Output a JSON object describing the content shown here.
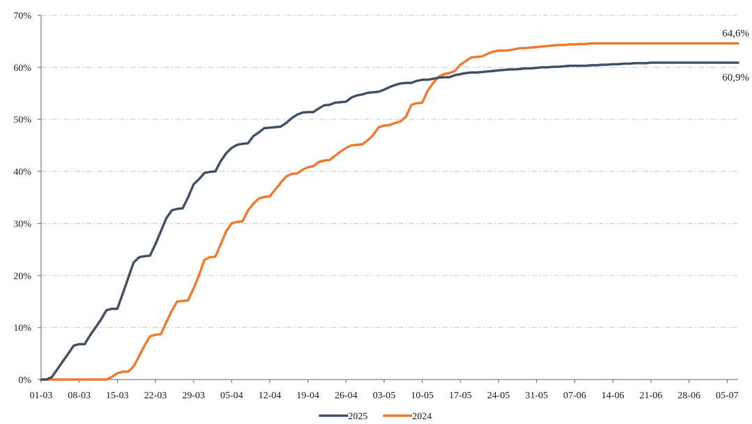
{
  "chart_data": {
    "type": "line",
    "title": "",
    "xlabel": "",
    "ylabel": "",
    "x_tick_labels": [
      "01-03",
      "08-03",
      "15-03",
      "22-03",
      "29-03",
      "05-04",
      "12-04",
      "19-04",
      "26-04",
      "03-05",
      "10-05",
      "17-05",
      "24-05",
      "31-05",
      "07-06",
      "14-06",
      "21-06",
      "28-06",
      "05-07"
    ],
    "y_tick_labels": [
      "0%",
      "10%",
      "20%",
      "30%",
      "40%",
      "50%",
      "60%",
      "70%"
    ],
    "ylim": [
      0,
      70
    ],
    "x_range_days": [
      0,
      128
    ],
    "grid": "horizontal dash-dot",
    "legend_position": "bottom-center",
    "series": [
      {
        "name": "2025",
        "color": "#44546a",
        "end_label": "60,9%",
        "x": [
          0,
          1,
          2,
          3,
          4,
          5,
          6,
          7,
          8,
          9,
          10,
          11,
          12,
          13,
          14,
          15,
          16,
          17,
          18,
          19,
          20,
          21,
          22,
          23,
          24,
          25,
          26,
          27,
          28,
          29,
          30,
          31,
          32,
          33,
          34,
          35,
          36,
          37,
          38,
          39,
          40,
          41,
          42,
          43,
          44,
          45,
          46,
          47,
          48,
          49,
          50,
          51,
          52,
          53,
          54,
          55,
          56,
          57,
          58,
          59,
          60,
          61,
          62,
          63,
          64,
          65,
          66,
          67,
          68,
          69,
          70,
          71,
          72,
          73,
          74,
          75,
          76,
          77,
          78,
          79,
          80,
          81,
          82,
          83,
          84,
          85,
          86,
          87,
          88,
          89,
          90,
          91,
          92,
          93,
          94,
          95,
          96,
          97,
          98,
          99,
          100,
          101,
          102,
          103,
          104,
          105,
          106,
          107,
          108,
          109,
          110,
          111,
          112,
          113,
          114,
          115,
          116,
          117,
          118,
          119,
          120,
          121,
          122,
          123,
          124,
          125,
          126,
          127,
          128
        ],
        "values": [
          0,
          0,
          0.5,
          2,
          3.5,
          5,
          6.5,
          6.8,
          6.8,
          8.5,
          10,
          11.5,
          13.3,
          13.6,
          13.6,
          16.5,
          19.5,
          22.5,
          23.5,
          23.7,
          23.8,
          26,
          28.5,
          31,
          32.5,
          32.8,
          32.9,
          35,
          37.5,
          38.5,
          39.7,
          39.9,
          40,
          42,
          43.5,
          44.5,
          45.1,
          45.3,
          45.4,
          46.8,
          47.5,
          48.3,
          48.4,
          48.5,
          48.6,
          49.3,
          50.2,
          50.9,
          51.3,
          51.4,
          51.4,
          52.1,
          52.7,
          52.8,
          53.2,
          53.3,
          53.4,
          54.2,
          54.6,
          54.8,
          55.1,
          55.2,
          55.3,
          55.7,
          56.2,
          56.6,
          56.9,
          57,
          57,
          57.4,
          57.6,
          57.6,
          57.8,
          58,
          58.1,
          58.1,
          58.5,
          58.7,
          58.9,
          59,
          59,
          59.1,
          59.2,
          59.3,
          59.4,
          59.5,
          59.6,
          59.6,
          59.7,
          59.8,
          59.8,
          59.9,
          60,
          60,
          60.1,
          60.1,
          60.2,
          60.3,
          60.3,
          60.3,
          60.3,
          60.4,
          60.4,
          60.5,
          60.5,
          60.6,
          60.6,
          60.7,
          60.7,
          60.8,
          60.8,
          60.8,
          60.9,
          60.9,
          60.9,
          60.9,
          60.9,
          60.9,
          60.9,
          60.9,
          60.9,
          60.9,
          60.9,
          60.9,
          60.9,
          60.9,
          60.9,
          60.9,
          60.9
        ]
      },
      {
        "name": "2024",
        "color": "#ed7d31",
        "end_label": "64,6%",
        "x": [
          0,
          1,
          2,
          3,
          4,
          5,
          6,
          7,
          8,
          9,
          10,
          11,
          12,
          13,
          14,
          15,
          16,
          17,
          18,
          19,
          20,
          21,
          22,
          23,
          24,
          25,
          26,
          27,
          28,
          29,
          30,
          31,
          32,
          33,
          34,
          35,
          36,
          37,
          38,
          39,
          40,
          41,
          42,
          43,
          44,
          45,
          46,
          47,
          48,
          49,
          50,
          51,
          52,
          53,
          54,
          55,
          56,
          57,
          58,
          59,
          60,
          61,
          62,
          63,
          64,
          65,
          66,
          67,
          68,
          69,
          70,
          71,
          72,
          73,
          74,
          75,
          76,
          77,
          78,
          79,
          80,
          81,
          82,
          83,
          84,
          85,
          86,
          87,
          88,
          89,
          90,
          91,
          92,
          93,
          94,
          95,
          96,
          97,
          98,
          99,
          100,
          101,
          102,
          103,
          104,
          105,
          106,
          107,
          108,
          109,
          110,
          111,
          112,
          113,
          114,
          115,
          116,
          117,
          118,
          119,
          120,
          121,
          122,
          123,
          124,
          125,
          126,
          127,
          128
        ],
        "values": [
          0,
          0,
          0,
          0,
          0,
          0,
          0,
          0,
          0,
          0,
          0,
          0,
          0,
          0.5,
          1.2,
          1.5,
          1.5,
          2.5,
          4.5,
          6.5,
          8.3,
          8.6,
          8.7,
          11,
          13.2,
          15,
          15.1,
          15.2,
          17.5,
          20,
          23,
          23.5,
          23.6,
          26,
          28.5,
          30,
          30.3,
          30.4,
          32.5,
          33.8,
          34.8,
          35.1,
          35.2,
          36.5,
          37.8,
          39,
          39.5,
          39.6,
          40.3,
          40.8,
          41,
          41.8,
          42.1,
          42.2,
          43,
          43.8,
          44.5,
          45,
          45.1,
          45.2,
          46,
          47,
          48.5,
          48.8,
          48.9,
          49.3,
          49.6,
          50.5,
          52.8,
          53.1,
          53.2,
          55.5,
          57,
          58.2,
          58.7,
          58.9,
          59.3,
          60.5,
          61.2,
          61.9,
          62,
          62.1,
          62.6,
          63,
          63.2,
          63.2,
          63.3,
          63.5,
          63.7,
          63.7,
          63.8,
          63.9,
          64,
          64.1,
          64.2,
          64.3,
          64.3,
          64.4,
          64.4,
          64.5,
          64.5,
          64.6,
          64.6,
          64.6,
          64.6,
          64.6,
          64.6,
          64.6,
          64.6,
          64.6,
          64.6,
          64.6,
          64.6,
          64.6,
          64.6,
          64.6,
          64.6,
          64.6,
          64.6,
          64.6,
          64.6,
          64.6,
          64.6,
          64.6,
          64.6,
          64.6,
          64.6,
          64.6,
          64.6
        ]
      }
    ]
  }
}
